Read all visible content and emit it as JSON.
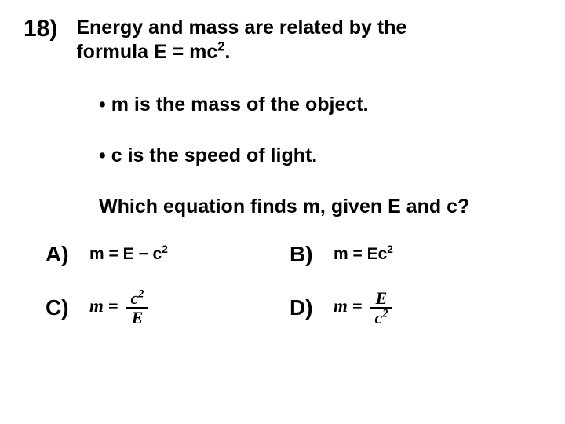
{
  "question": {
    "number": "18)",
    "text_line1": "Energy and mass are related by the",
    "text_line2_prefix": "formula E = mc",
    "text_line2_exp": "2",
    "text_line2_suffix": "."
  },
  "bullets": [
    {
      "symbol": "•",
      "text": "m is the mass of the object."
    },
    {
      "symbol": "•",
      "text": "c is the speed of light."
    }
  ],
  "prompt": "Which equation finds m, given E and c?",
  "options": {
    "A": {
      "letter": "A)",
      "prefix": "m = E − c",
      "exp": "2"
    },
    "B": {
      "letter": "B)",
      "prefix": "m = Ec",
      "exp": "2"
    },
    "C": {
      "letter": "C)",
      "eq_lhs": "m =",
      "num_base": "c",
      "num_exp": "2",
      "den": "E"
    },
    "D": {
      "letter": "D)",
      "eq_lhs": "m =",
      "num": "E",
      "den_base": "c",
      "den_exp": "2"
    }
  },
  "colors": {
    "background": "#ffffff",
    "text": "#000000"
  },
  "fonts": {
    "sans": "Arial",
    "serif": "Times New Roman",
    "qnum_size_pt": 22,
    "body_size_pt": 19,
    "option_letter_size_pt": 21,
    "option_body_size_pt": 16
  }
}
